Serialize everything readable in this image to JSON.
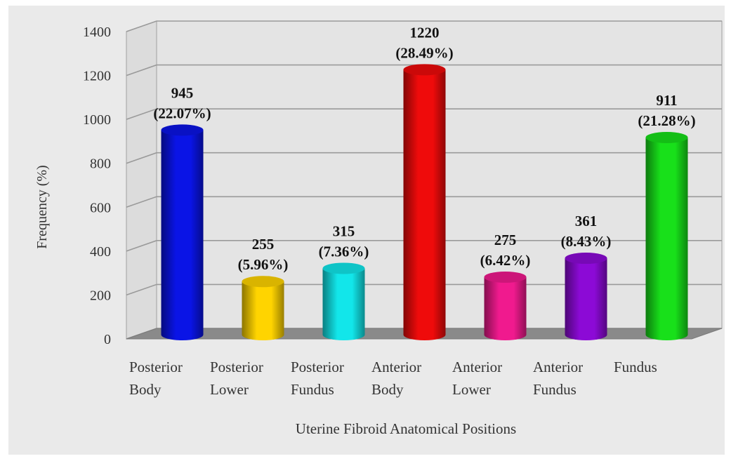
{
  "chart_data": {
    "type": "bar",
    "xlabel": "Uterine Fibroid Anatomical Positions",
    "ylabel": "Frequency (%)",
    "ylim": [
      0,
      1400
    ],
    "yticks": [
      "0",
      "200",
      "400",
      "600",
      "800",
      "1000",
      "1200",
      "1400"
    ],
    "grid": true,
    "categories": [
      [
        "Posterior",
        "Body"
      ],
      [
        "Posterior",
        "Lower"
      ],
      [
        "Posterior",
        "Fundus"
      ],
      [
        "Anterior",
        "Body"
      ],
      [
        "Anterior",
        "Lower"
      ],
      [
        "Anterior",
        "Fundus"
      ],
      [
        "Fundus"
      ]
    ],
    "values": [
      945,
      255,
      315,
      1220,
      275,
      361,
      911
    ],
    "value_labels": [
      "945",
      "255",
      "315",
      "1220",
      "275",
      "361",
      "911"
    ],
    "percent_labels": [
      "(22.07%)",
      "(5.96%)",
      "(7.36%)",
      "(28.49%)",
      "(6.42%)",
      "(8.43%)",
      "(21.28%)"
    ],
    "colors": [
      "#0a14e6",
      "#ffd400",
      "#12e6ea",
      "#ef0b0b",
      "#f01a8e",
      "#8c0ad6",
      "#18e01a"
    ],
    "floor_color": "#8a8a8a",
    "grid_color": "#9a9a9a"
  }
}
